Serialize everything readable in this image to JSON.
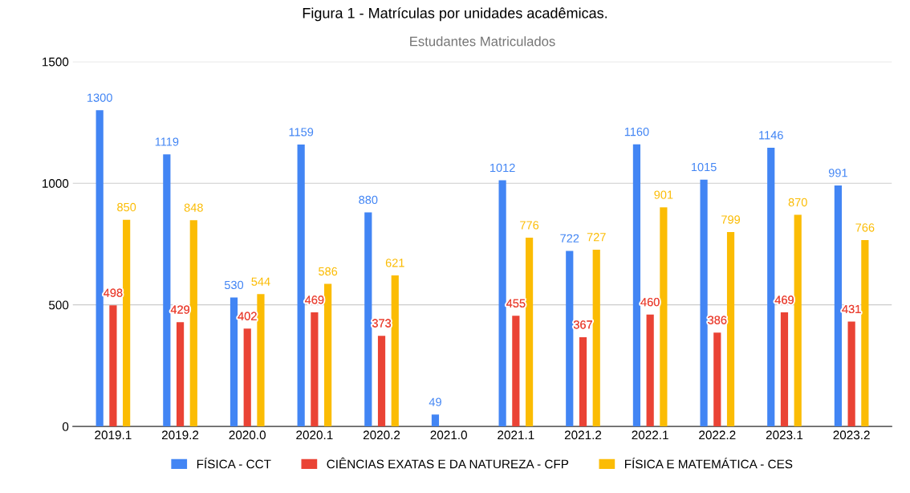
{
  "chart_data": {
    "type": "bar",
    "title": "Estudantes Matriculados",
    "annotations": [
      "Figura 1 - Matrículas por unidades acadêmicas."
    ],
    "categories": [
      "2019.1",
      "2019.2",
      "2020.0",
      "2020.1",
      "2020.2",
      "2021.0",
      "2021.1",
      "2021.2",
      "2022.1",
      "2022.2",
      "2023.1",
      "2023.2"
    ],
    "series": [
      {
        "name": "FÍSICA - CCT",
        "color": "#4285f4",
        "values": [
          1300,
          1119,
          530,
          1159,
          880,
          49,
          1012,
          722,
          1160,
          1015,
          1146,
          991
        ]
      },
      {
        "name": "CIÊNCIAS EXATAS E DA NATUREZA - CFP",
        "color": "#ea4335",
        "values": [
          498,
          429,
          402,
          469,
          373,
          null,
          455,
          367,
          460,
          386,
          469,
          431
        ]
      },
      {
        "name": "FÍSICA E MATEMÁTICA - CES",
        "color": "#fbbc04",
        "values": [
          850,
          848,
          544,
          586,
          621,
          null,
          776,
          727,
          901,
          799,
          870,
          766
        ]
      }
    ],
    "ylim": [
      0,
      1500
    ],
    "yticks": [
      0,
      500,
      1000,
      1500
    ],
    "grid": "y",
    "legend": "bottom",
    "data_labels": true
  }
}
